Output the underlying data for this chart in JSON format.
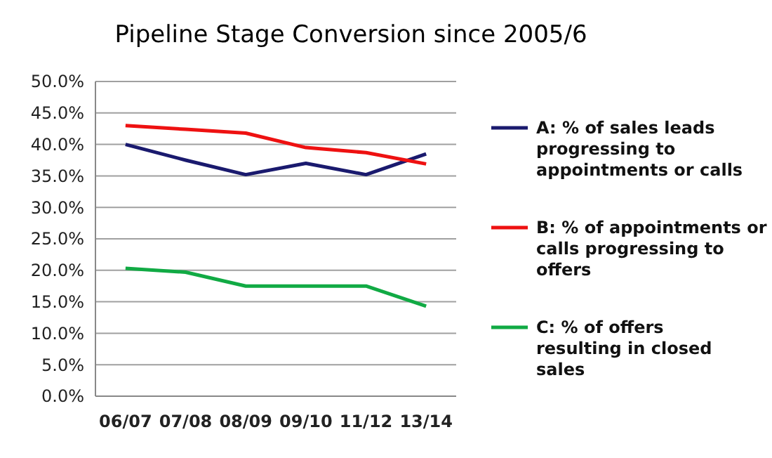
{
  "chart_data": {
    "type": "line",
    "title": "Pipeline Stage Conversion since 2005/6",
    "categories": [
      "06/07",
      "07/08",
      "08/09",
      "09/10",
      "11/12",
      "13/14"
    ],
    "series": [
      {
        "name": "A: % of sales leads progressing to appointments or calls",
        "color": "#1a1a6e",
        "values": [
          40.0,
          37.5,
          35.2,
          37.0,
          35.2,
          38.5
        ]
      },
      {
        "name": "B: % of appointments or calls progressing to offers",
        "color": "#ee1111",
        "values": [
          43.0,
          42.4,
          41.8,
          39.5,
          38.7,
          36.9
        ]
      },
      {
        "name": "C: % of offers resulting in closed sales",
        "color": "#11aa44",
        "values": [
          20.3,
          19.7,
          17.5,
          17.5,
          17.5,
          14.3
        ]
      }
    ],
    "ylim": [
      0,
      50
    ],
    "yticks": [
      {
        "value": 0,
        "label": "0.0%"
      },
      {
        "value": 5,
        "label": "5.0%"
      },
      {
        "value": 10,
        "label": "10.0%"
      },
      {
        "value": 15,
        "label": "15.0%"
      },
      {
        "value": 20,
        "label": "20.0%"
      },
      {
        "value": 25,
        "label": "25.0%"
      },
      {
        "value": 30,
        "label": "30.0%"
      },
      {
        "value": 35,
        "label": "35.0%"
      },
      {
        "value": 40,
        "label": "40.0%"
      },
      {
        "value": 45,
        "label": "45.0%"
      },
      {
        "value": 50,
        "label": "50.0%"
      }
    ],
    "grid": "y",
    "legend": "right",
    "marker": "none",
    "line_style": "solid"
  }
}
